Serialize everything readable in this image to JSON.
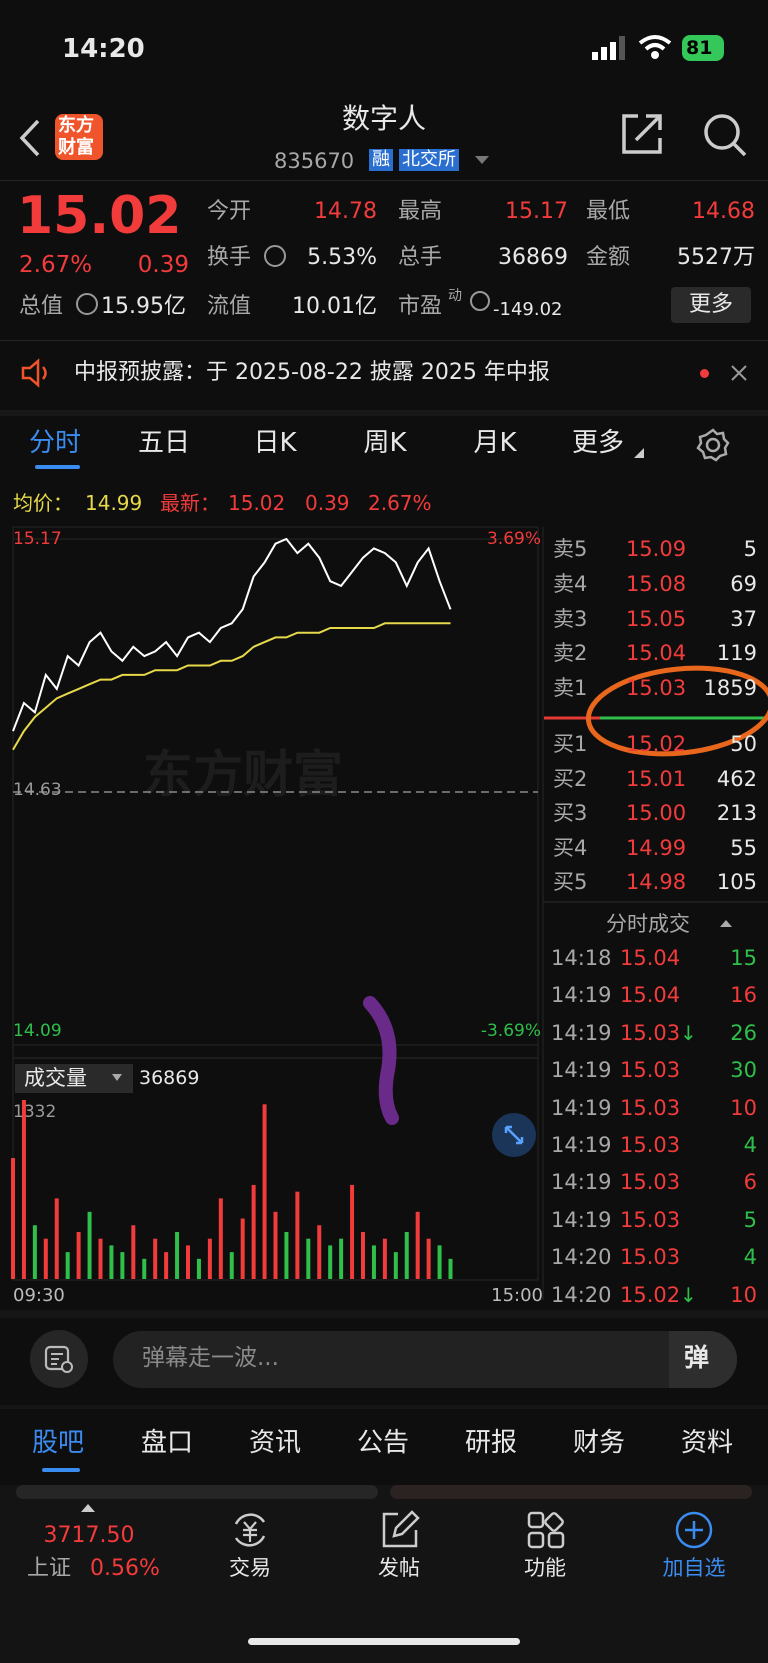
{
  "status_bar": {
    "time": "14:20",
    "battery": "81"
  },
  "header": {
    "logo": [
      "东方",
      "财富"
    ],
    "title": "数字人",
    "code": "835670",
    "tags": [
      "融",
      "北交所"
    ]
  },
  "quote": {
    "price": "15.02",
    "change_pct": "2.67%",
    "change": "0.39",
    "open_label": "今开",
    "open": "14.78",
    "high_label": "最高",
    "high": "15.17",
    "low_label": "最低",
    "low": "14.68",
    "turnover_label": "换手",
    "turnover": "5.53%",
    "volume_label": "总手",
    "volume": "36869",
    "amount_label": "金额",
    "amount": "5527万",
    "mktcap_label": "总值",
    "mktcap": "15.95亿",
    "float_label": "流值",
    "float": "10.01亿",
    "pe_label": "市盈",
    "pe_sup": "动",
    "pe": "-149.02",
    "more": "更多"
  },
  "notice": {
    "text": "中报预披露：于 2025-08-22 披露 2025 年中报"
  },
  "tabs": [
    "分时",
    "五日",
    "日K",
    "周K",
    "月K",
    "更多"
  ],
  "chart_data": [
    {
      "type": "line",
      "legend": {
        "avg_label": "均价：",
        "avg": "14.99",
        "last_label": "最新：",
        "last": "15.02",
        "change": "0.39",
        "change_pct": "2.67%"
      },
      "watermark": "东方财富",
      "x": [
        0,
        5,
        10,
        15,
        20,
        25,
        30,
        35,
        40,
        45,
        50,
        55,
        60,
        65,
        70,
        75,
        80,
        85,
        90,
        95,
        100,
        105,
        110,
        115,
        120,
        125,
        130,
        135,
        140,
        145,
        150,
        155,
        160,
        165,
        170,
        175,
        180,
        185,
        190,
        195,
        200
      ],
      "xlim": [
        0,
        240
      ],
      "ylim": [
        14.09,
        15.17
      ],
      "yticks": [
        15.17,
        14.63,
        14.09
      ],
      "y2lim": [
        -3.69,
        3.69
      ],
      "y2ticks": [
        {
          "value": 3.69,
          "label": "3.69%"
        },
        {
          "value": -3.69,
          "label": "-3.69%"
        }
      ],
      "series": [
        {
          "color": "#ffffff",
          "values": [
            14.76,
            14.82,
            14.8,
            14.88,
            14.85,
            14.92,
            14.9,
            14.95,
            14.97,
            14.93,
            14.91,
            14.94,
            14.92,
            14.93,
            14.95,
            14.92,
            14.96,
            14.97,
            14.95,
            14.98,
            14.99,
            15.02,
            15.09,
            15.12,
            15.16,
            15.17,
            15.14,
            15.16,
            15.13,
            15.08,
            15.07,
            15.1,
            15.13,
            15.15,
            15.14,
            15.12,
            15.07,
            15.12,
            15.15,
            15.08,
            15.02
          ]
        },
        {
          "color": "#e6d94a",
          "values": [
            14.72,
            14.76,
            14.79,
            14.81,
            14.83,
            14.84,
            14.85,
            14.86,
            14.87,
            14.87,
            14.88,
            14.88,
            14.88,
            14.89,
            14.89,
            14.89,
            14.9,
            14.9,
            14.9,
            14.91,
            14.91,
            14.92,
            14.94,
            14.95,
            14.96,
            14.96,
            14.97,
            14.97,
            14.97,
            14.98,
            14.98,
            14.98,
            14.98,
            14.98,
            14.99,
            14.99,
            14.99,
            14.99,
            14.99,
            14.99,
            14.99
          ]
        }
      ]
    },
    {
      "type": "bar",
      "label": "成交量",
      "total": "36869",
      "x": [
        0,
        5,
        10,
        15,
        20,
        25,
        30,
        35,
        40,
        45,
        50,
        55,
        60,
        65,
        70,
        75,
        80,
        85,
        90,
        95,
        100,
        105,
        110,
        115,
        120,
        125,
        130,
        135,
        140,
        145,
        150,
        155,
        160,
        165,
        170,
        175,
        180,
        185,
        190,
        195,
        200
      ],
      "xlim": [
        0,
        240
      ],
      "xticks": [
        {
          "value": 0,
          "label": "09:30"
        },
        {
          "value": 240,
          "label": "15:00"
        }
      ],
      "ylim": [
        0,
        1332
      ],
      "yticks": [
        1332
      ],
      "values": [
        900,
        1332,
        400,
        300,
        600,
        200,
        350,
        500,
        300,
        250,
        200,
        400,
        150,
        300,
        200,
        350,
        250,
        150,
        300,
        600,
        200,
        450,
        700,
        1300,
        500,
        350,
        650,
        300,
        400,
        250,
        300,
        700,
        350,
        250,
        300,
        200,
        350,
        500,
        300,
        250,
        150
      ],
      "colors": [
        "#f23b3b",
        "#f23b3b",
        "#2fbf4a",
        "#f23b3b",
        "#f23b3b",
        "#2fbf4a",
        "#f23b3b",
        "#2fbf4a",
        "#f23b3b",
        "#2fbf4a",
        "#2fbf4a",
        "#f23b3b",
        "#2fbf4a",
        "#f23b3b",
        "#f23b3b",
        "#2fbf4a",
        "#f23b3b",
        "#2fbf4a",
        "#f23b3b",
        "#f23b3b",
        "#2fbf4a",
        "#f23b3b",
        "#f23b3b",
        "#f23b3b",
        "#f23b3b",
        "#2fbf4a",
        "#f23b3b",
        "#2fbf4a",
        "#f23b3b",
        "#2fbf4a",
        "#2fbf4a",
        "#f23b3b",
        "#f23b3b",
        "#2fbf4a",
        "#f23b3b",
        "#2fbf4a",
        "#2fbf4a",
        "#f23b3b",
        "#f23b3b",
        "#2fbf4a",
        "#2fbf4a"
      ]
    }
  ],
  "order_book": {
    "asks": [
      {
        "label": "卖5",
        "price": "15.09",
        "volume": "5"
      },
      {
        "label": "卖4",
        "price": "15.08",
        "volume": "69"
      },
      {
        "label": "卖3",
        "price": "15.05",
        "volume": "37"
      },
      {
        "label": "卖2",
        "price": "15.04",
        "volume": "119"
      },
      {
        "label": "卖1",
        "price": "15.03",
        "volume": "1859"
      }
    ],
    "bids": [
      {
        "label": "买1",
        "price": "15.02",
        "volume": "50"
      },
      {
        "label": "买2",
        "price": "15.01",
        "volume": "462"
      },
      {
        "label": "买3",
        "price": "15.00",
        "volume": "213"
      },
      {
        "label": "买4",
        "price": "14.99",
        "volume": "55"
      },
      {
        "label": "买5",
        "price": "14.98",
        "volume": "105"
      }
    ]
  },
  "trades": {
    "title": "分时成交",
    "rows": [
      {
        "time": "14:18",
        "price": "15.04",
        "volume": "15",
        "color": "#2fbf4a"
      },
      {
        "time": "14:19",
        "price": "15.04",
        "volume": "16",
        "color": "#f23b3b"
      },
      {
        "time": "14:19",
        "price": "15.03",
        "arrow": "↓",
        "volume": "26",
        "color": "#2fbf4a"
      },
      {
        "time": "14:19",
        "price": "15.03",
        "volume": "30",
        "color": "#2fbf4a"
      },
      {
        "time": "14:19",
        "price": "15.03",
        "volume": "10",
        "color": "#f23b3b"
      },
      {
        "time": "14:19",
        "price": "15.03",
        "volume": "4",
        "color": "#2fbf4a"
      },
      {
        "time": "14:19",
        "price": "15.03",
        "volume": "6",
        "color": "#f23b3b"
      },
      {
        "time": "14:19",
        "price": "15.03",
        "volume": "5",
        "color": "#2fbf4a"
      },
      {
        "time": "14:20",
        "price": "15.03",
        "volume": "4",
        "color": "#2fbf4a"
      },
      {
        "time": "14:20",
        "price": "15.02",
        "arrow": "↓",
        "volume": "10",
        "color": "#f23b3b"
      }
    ]
  },
  "comment": {
    "placeholder": "弹幕走一波...",
    "button": "弹"
  },
  "section_tabs": [
    "股吧",
    "盘口",
    "资讯",
    "公告",
    "研报",
    "财务",
    "资料"
  ],
  "bottom_nav": {
    "index_value": "3717.50",
    "index_name": "上证",
    "index_change": "0.56%",
    "items": [
      "交易",
      "发帖",
      "功能",
      "加自选"
    ]
  }
}
